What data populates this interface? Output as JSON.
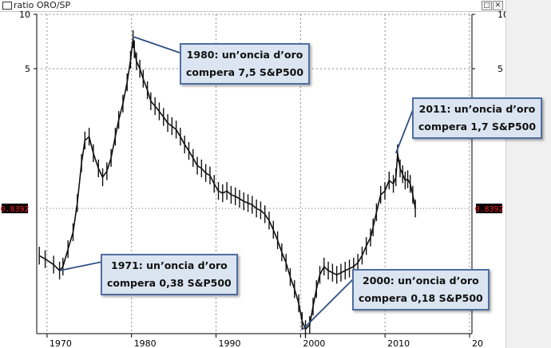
{
  "window": {
    "title": "ratio ORO/SP",
    "min_glyph": "□",
    "close_glyph": "✕"
  },
  "chart_data": {
    "type": "line",
    "title": "ratio ORO/SP",
    "xlabel": "",
    "ylabel": "",
    "y_scale": "log",
    "ylim": [
      0.17,
      10
    ],
    "xlim": [
      1968.5,
      2020
    ],
    "x_ticks": [
      "1970",
      "1980",
      "1990",
      "2000",
      "2010",
      "20"
    ],
    "y_ticks": [
      "10",
      "5"
    ],
    "last_value_label": "0.8392",
    "grid": true,
    "series": [
      {
        "x": [
          1968.8,
          1969.5,
          1970.5,
          1971.2,
          1971.6,
          1972.2,
          1972.8,
          1973.3,
          1973.8,
          1974.2,
          1974.7,
          1975.2,
          1975.8,
          1976.3,
          1976.8,
          1977.3,
          1977.8,
          1978.2,
          1978.7,
          1979.2,
          1979.6,
          1979.9,
          1980.05,
          1980.3,
          1980.7,
          1981.1,
          1981.6,
          1982.0,
          1982.5,
          1983.0,
          1983.5,
          1984.0,
          1984.5,
          1985.0,
          1985.5,
          1986.0,
          1986.5,
          1987.0,
          1987.5,
          1988.0,
          1988.5,
          1989.0,
          1989.5,
          1990.0,
          1990.5,
          1991.0,
          1991.5,
          1992.0,
          1992.5,
          1993.0,
          1993.5,
          1994.0,
          1994.5,
          1995.0,
          1995.5,
          1996.0,
          1996.5,
          1997.0,
          1997.5,
          1998.0,
          1998.5,
          1999.0,
          1999.5,
          1999.9,
          2000.3,
          2000.8,
          2001.2,
          2001.6,
          2002.0,
          2002.5,
          2003.0,
          2003.5,
          2004.0,
          2004.5,
          2005.0,
          2005.5,
          2006.0,
          2006.5,
          2007.0,
          2007.5,
          2008.0,
          2008.3,
          2008.7,
          2009.2,
          2009.7,
          2010.2,
          2010.7,
          2011.0,
          2011.2,
          2011.5,
          2011.8,
          2012.1,
          2012.4,
          2012.7,
          2013.0,
          2013.3
        ],
        "y": [
          0.46,
          0.44,
          0.41,
          0.38,
          0.4,
          0.5,
          0.62,
          0.9,
          1.5,
          2.0,
          2.1,
          1.7,
          1.4,
          1.25,
          1.35,
          1.6,
          2.1,
          2.6,
          3.2,
          4.2,
          5.6,
          7.3,
          6.4,
          5.5,
          5.0,
          4.4,
          3.8,
          3.3,
          3.1,
          2.9,
          2.7,
          2.5,
          2.4,
          2.3,
          2.1,
          1.9,
          1.75,
          1.6,
          1.45,
          1.4,
          1.32,
          1.28,
          1.15,
          1.05,
          1.02,
          1.05,
          1.0,
          0.98,
          0.95,
          0.92,
          0.9,
          0.88,
          0.84,
          0.82,
          0.78,
          0.72,
          0.64,
          0.56,
          0.48,
          0.42,
          0.35,
          0.3,
          0.25,
          0.2,
          0.18,
          0.19,
          0.24,
          0.3,
          0.36,
          0.4,
          0.38,
          0.37,
          0.36,
          0.37,
          0.38,
          0.39,
          0.4,
          0.42,
          0.46,
          0.52,
          0.58,
          0.66,
          0.8,
          1.0,
          1.05,
          1.2,
          1.15,
          1.25,
          1.7,
          1.4,
          1.3,
          1.2,
          1.22,
          1.15,
          1.0,
          0.84
        ]
      }
    ],
    "annotations": [
      {
        "line1": "1980: un’oncia d’oro",
        "line2": "compera 7,5 S&P500",
        "x": 1980.0,
        "y": 7.5
      },
      {
        "line1": "2011: un’oncia d’oro",
        "line2": "compera 1,7 S&P500",
        "x": 2011.0,
        "y": 1.7
      },
      {
        "line1": "1971: un’oncia d’oro",
        "line2": "compera 0,38 S&P500",
        "x": 1971.2,
        "y": 0.38
      },
      {
        "line1": "2000: un’oncia d’oro",
        "line2": "compera 0,18 S&P500",
        "x": 2000.0,
        "y": 0.18
      }
    ],
    "colors": {
      "price": "#111111",
      "grid": "#8c8c8c",
      "last_value_bg": "#000000",
      "last_value_fg": "#ff2020",
      "callout_bg": "#dbe5f1",
      "callout_border": "#4f6ea0",
      "leader": "#2f4f80"
    }
  }
}
